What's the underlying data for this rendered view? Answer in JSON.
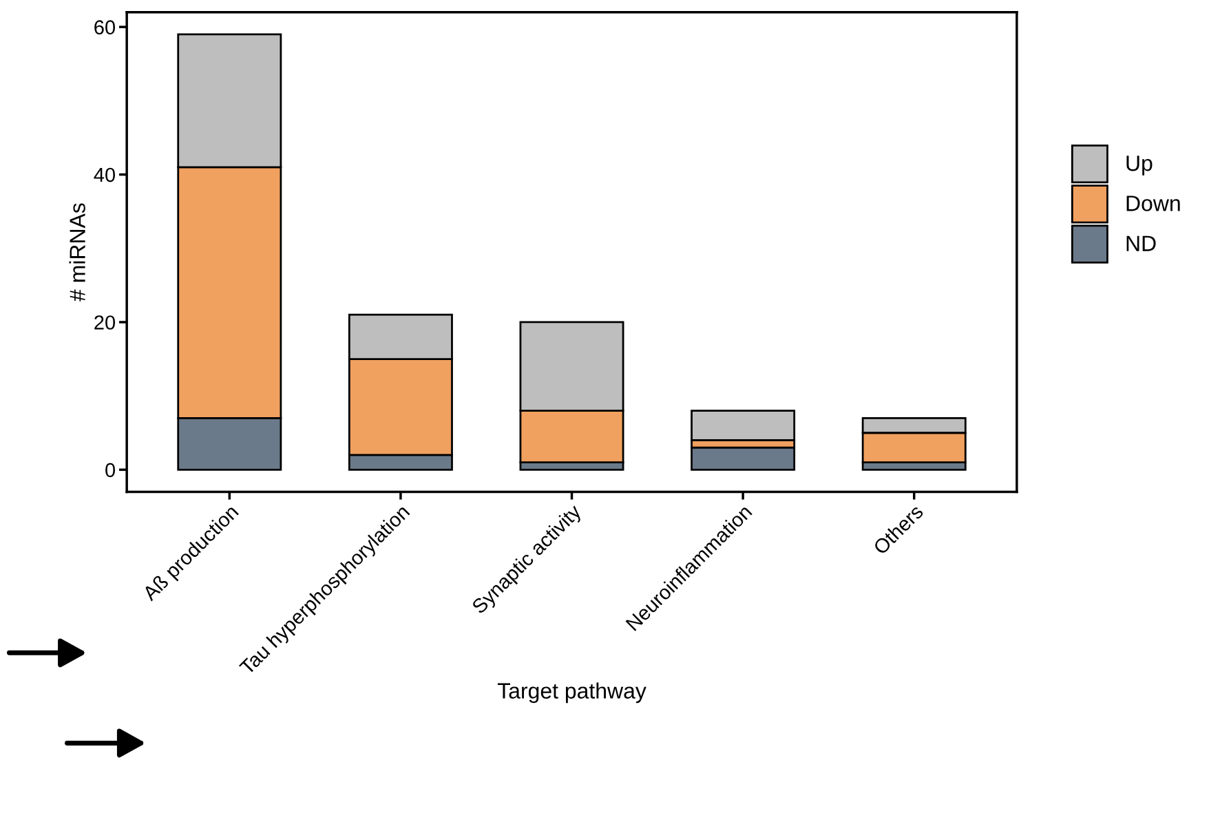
{
  "chart_data": {
    "type": "bar",
    "stacked": true,
    "xlabel": "Target pathway",
    "ylabel": "# miRNAs",
    "categories": [
      "Aß production",
      "Tau hyperphosphorylation",
      "Synaptic activity",
      "Neuroinflammation",
      "Others"
    ],
    "series": [
      {
        "name": "ND",
        "color": "#6b7a8a",
        "values": [
          7,
          2,
          1,
          3,
          1
        ]
      },
      {
        "name": "Down",
        "color": "#f0a05f",
        "values": [
          34,
          13,
          7,
          1,
          4
        ]
      },
      {
        "name": "Up",
        "color": "#bebebe",
        "values": [
          18,
          6,
          12,
          4,
          2
        ]
      }
    ],
    "ylim": [
      -3,
      62
    ],
    "yticks": [
      0,
      20,
      40,
      60
    ],
    "grid": false,
    "legend": "right"
  }
}
